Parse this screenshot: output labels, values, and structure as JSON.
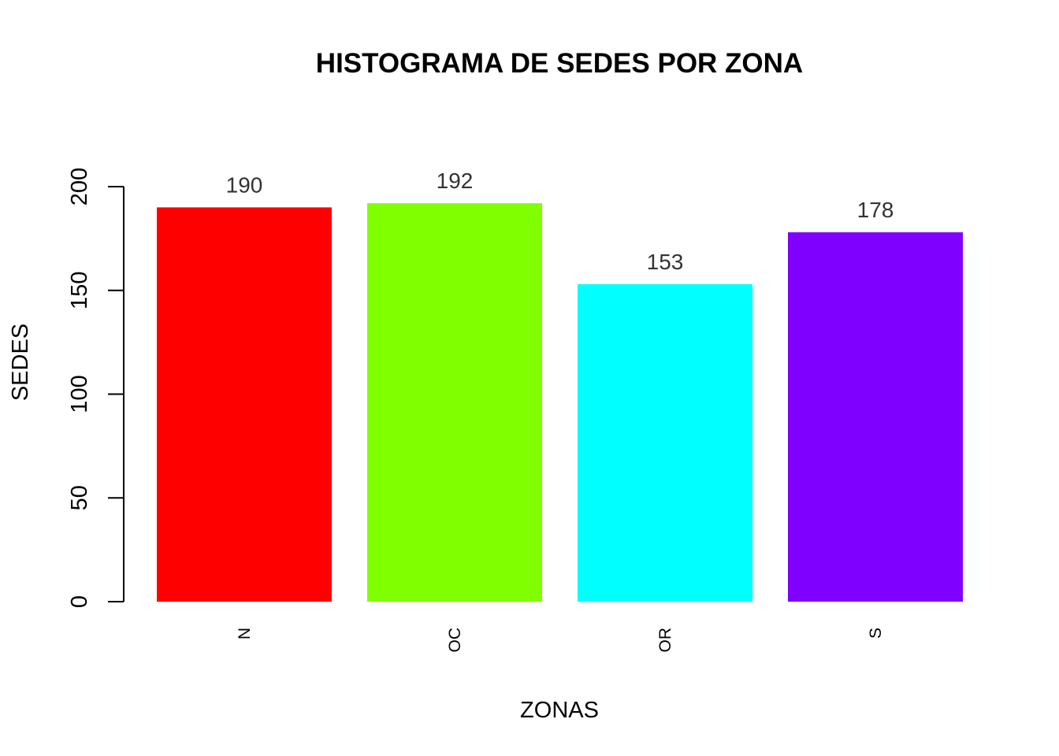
{
  "chart_data": {
    "type": "bar",
    "title": "HISTOGRAMA DE SEDES POR ZONA",
    "xlabel": "ZONAS",
    "ylabel": "SEDES",
    "categories": [
      "N",
      "OC",
      "OR",
      "S"
    ],
    "values": [
      190,
      192,
      153,
      178
    ],
    "value_labels": [
      "190",
      "192",
      "153",
      "178"
    ],
    "colors": [
      "#FF0000",
      "#80FF00",
      "#00FFFF",
      "#8000FF"
    ],
    "ylim": [
      0,
      200
    ],
    "yticks": [
      0,
      50,
      100,
      150,
      200
    ],
    "ytick_labels": [
      "0",
      "50",
      "100",
      "150",
      "200"
    ],
    "grid": false,
    "legend": "none"
  }
}
